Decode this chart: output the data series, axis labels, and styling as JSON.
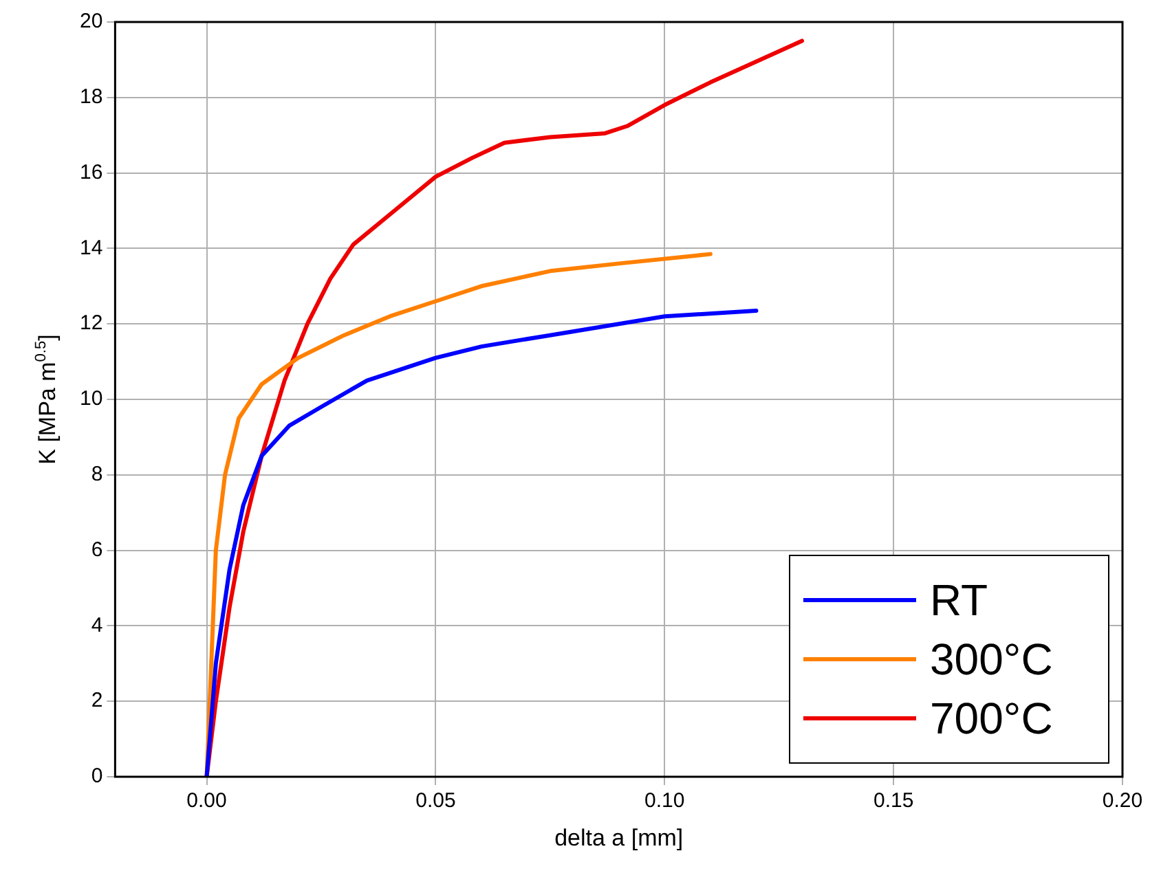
{
  "chart_data": {
    "type": "line",
    "xlabel": "delta a [mm]",
    "ylabel": "K [MPa m$^{0.5}$]",
    "xlim": [
      -0.02,
      0.2
    ],
    "xticks": [
      {
        "value": 0,
        "label": "0.00"
      },
      {
        "value": 0.05,
        "label": "0.05"
      },
      {
        "value": 0.1,
        "label": "0.10"
      },
      {
        "value": 0.15,
        "label": "0.15"
      },
      {
        "value": 0.2,
        "label": "0.20"
      }
    ],
    "ylim": [
      0,
      20
    ],
    "yticks": [
      0,
      2,
      4,
      6,
      8,
      10,
      12,
      14,
      16,
      18,
      20
    ],
    "grid": true,
    "legend": "bottom right",
    "marker": "none",
    "line_style": "solid",
    "series": [
      {
        "name": "RT",
        "color": "#0000ff",
        "x": [
          0,
          0.002,
          0.005,
          0.008,
          0.012,
          0.018,
          0.025,
          0.035,
          0.05,
          0.06,
          0.075,
          0.09,
          0.1,
          0.12
        ],
        "values": [
          0,
          3,
          5.5,
          7.2,
          8.5,
          9.3,
          9.8,
          10.5,
          11.1,
          11.4,
          11.7,
          12.0,
          12.2,
          12.35
        ]
      },
      {
        "name": "300°C",
        "color": "#ff8000",
        "x": [
          0,
          0.001,
          0.002,
          0.004,
          0.007,
          0.012,
          0.02,
          0.03,
          0.04,
          0.05,
          0.06,
          0.075,
          0.09,
          0.11
        ],
        "values": [
          0,
          3,
          6,
          8,
          9.5,
          10.4,
          11.1,
          11.7,
          12.2,
          12.6,
          13.0,
          13.4,
          13.6,
          13.85
        ]
      },
      {
        "name": "700°C",
        "color": "#ee0000",
        "x": [
          0,
          0.002,
          0.005,
          0.008,
          0.012,
          0.017,
          0.022,
          0.027,
          0.032,
          0.04,
          0.05,
          0.058,
          0.065,
          0.075,
          0.087,
          0.092,
          0.1,
          0.11,
          0.13
        ],
        "values": [
          0,
          2,
          4.5,
          6.5,
          8.5,
          10.5,
          12,
          13.2,
          14.1,
          14.9,
          15.9,
          16.4,
          16.8,
          16.95,
          17.05,
          17.25,
          17.8,
          18.4,
          19.5
        ]
      }
    ]
  }
}
